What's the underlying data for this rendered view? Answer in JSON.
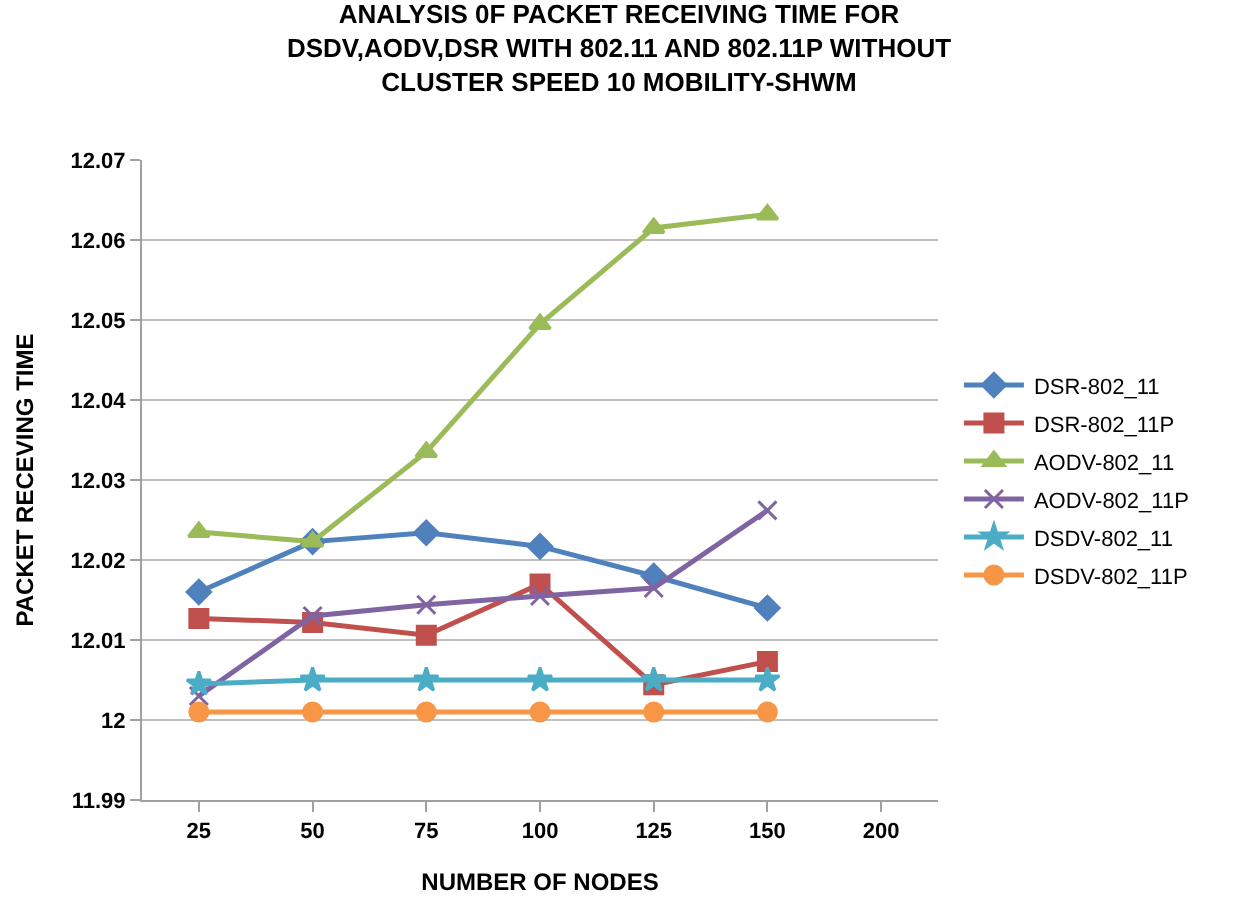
{
  "chart_data": {
    "type": "line",
    "title": "ANALYSIS 0F PACKET RECEIVING TIME FOR\nDSDV,AODV,DSR WITH 802.11 AND 802.11P WITHOUT\nCLUSTER SPEED 10 MOBILITY-SHWM",
    "xlabel": "NUMBER OF NODES",
    "ylabel": "PACKET RECEVING TIME",
    "categories": [
      "25",
      "50",
      "75",
      "100",
      "125",
      "150",
      "200"
    ],
    "series": [
      {
        "name": "DSR-802_11",
        "color": "#4f81bd",
        "marker": "diamond",
        "values": [
          12.016,
          12.0223,
          12.0234,
          12.0217,
          12.018,
          12.014,
          null
        ]
      },
      {
        "name": "DSR-802_11P",
        "color": "#c0504d",
        "marker": "square",
        "values": [
          12.0127,
          12.0122,
          12.0106,
          12.017,
          12.0044,
          12.0073,
          null
        ]
      },
      {
        "name": "AODV-802_11",
        "color": "#9bbb59",
        "marker": "triangle",
        "values": [
          12.0235,
          12.0223,
          12.0335,
          12.0495,
          12.0615,
          12.0632,
          null
        ]
      },
      {
        "name": "AODV-802_11P",
        "color": "#8064a2",
        "marker": "cross",
        "values": [
          12.003,
          12.013,
          12.0144,
          12.0155,
          12.0165,
          12.0262,
          null
        ]
      },
      {
        "name": "DSDV-802_11",
        "color": "#4bacc6",
        "marker": "star",
        "values": [
          12.0045,
          12.005,
          12.005,
          12.005,
          12.005,
          12.005,
          null
        ]
      },
      {
        "name": "DSDV-802_11P",
        "color": "#f79646",
        "marker": "circle",
        "values": [
          12.001,
          12.001,
          12.001,
          12.001,
          12.001,
          12.001,
          null
        ]
      }
    ],
    "ylim": [
      11.99,
      12.07
    ],
    "yticks": [
      11.99,
      12.01,
      12.02,
      12.03,
      12.04,
      12.05,
      12.06,
      12.07,
      {
        "value": 12,
        "label": "12"
      }
    ],
    "grid": "y",
    "legend": "right",
    "line_style": "solid"
  }
}
